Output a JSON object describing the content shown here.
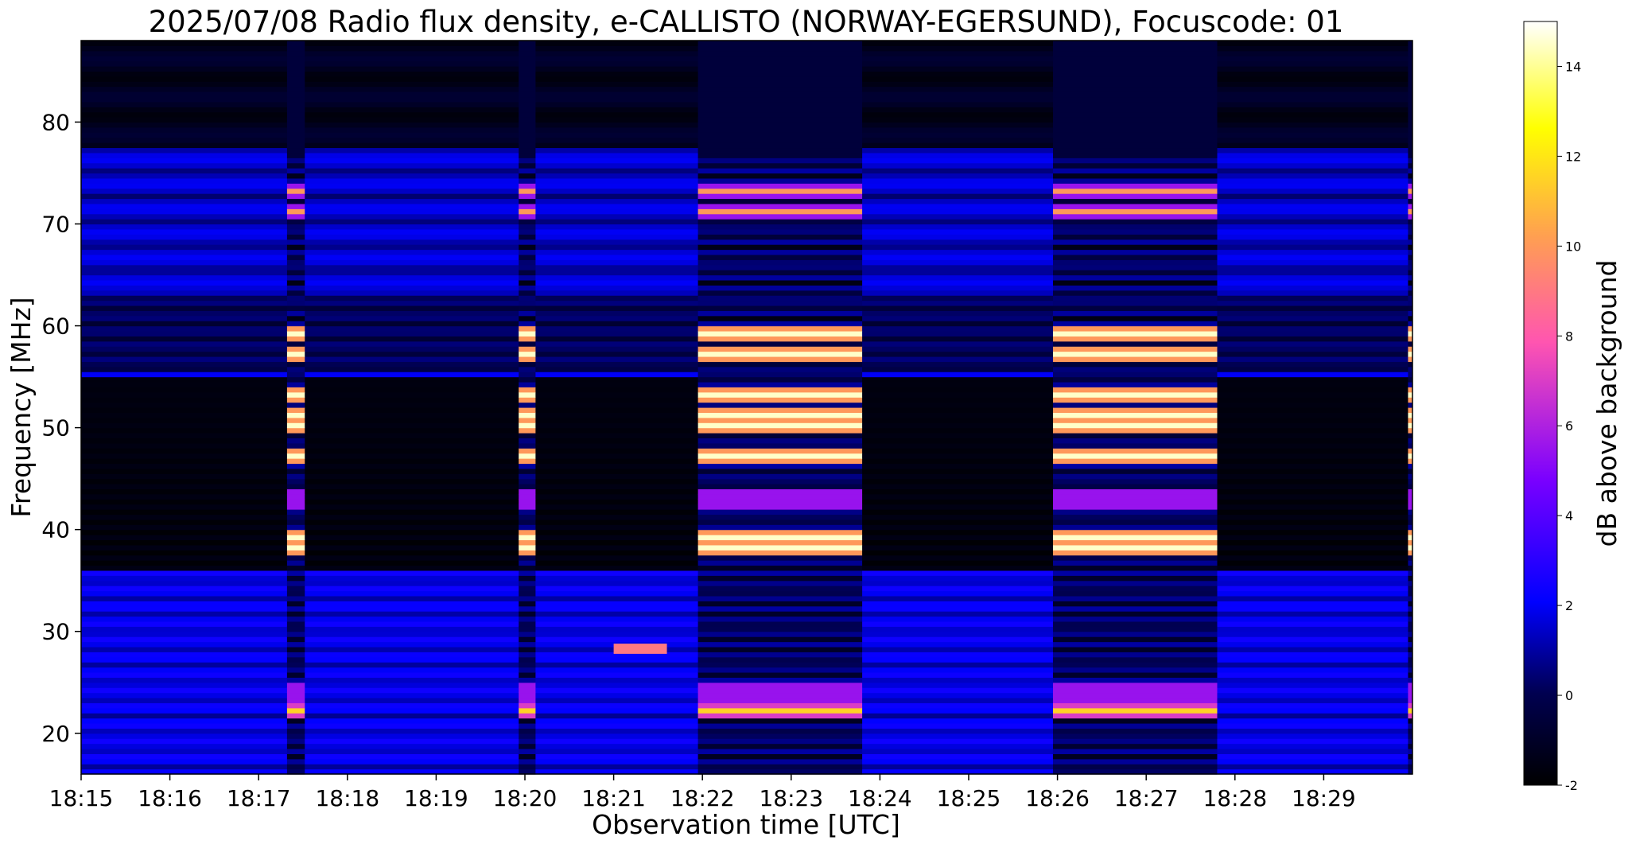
{
  "chart_data": {
    "type": "heatmap",
    "title": "2025/07/08  Radio flux density, e-CALLISTO (NORWAY-EGERSUND), Focuscode: 01",
    "xlabel": "Observation time [UTC]",
    "ylabel": "Frequency [MHz]",
    "x_ticks": [
      "18:15",
      "18:16",
      "18:17",
      "18:18",
      "18:19",
      "18:20",
      "18:21",
      "18:22",
      "18:23",
      "18:24",
      "18:25",
      "18:26",
      "18:27",
      "18:28",
      "18:29"
    ],
    "x_range_min": [
      0,
      15
    ],
    "y_ticks": [
      20,
      30,
      40,
      50,
      60,
      70,
      80
    ],
    "ylim": [
      16,
      88
    ],
    "colorbar": {
      "label": "dB above background",
      "ticks": [
        -2,
        0,
        2,
        4,
        6,
        8,
        10,
        12,
        14
      ],
      "range": [
        -2,
        15
      ],
      "colormap": "gnuplot2",
      "stops": [
        "#000000",
        "#0000ff",
        "#6a00ff",
        "#ff66a0",
        "#ffff00",
        "#ffffff"
      ]
    },
    "intense_bursts_min": [
      [
        2.32,
        2.52
      ],
      [
        4.93,
        5.12
      ],
      [
        6.95,
        8.8
      ],
      [
        10.95,
        12.8
      ],
      [
        14.95,
        15.0
      ]
    ],
    "bright_bands_mhz": [
      50,
      51,
      38,
      39,
      57,
      47,
      22,
      53,
      59,
      71,
      73
    ],
    "quiet_bands_mhz": [
      [
        36,
        48
      ],
      [
        48,
        55
      ]
    ],
    "blip": {
      "time_min": [
        6.0,
        6.6
      ],
      "freq_mhz": 28.3
    }
  }
}
